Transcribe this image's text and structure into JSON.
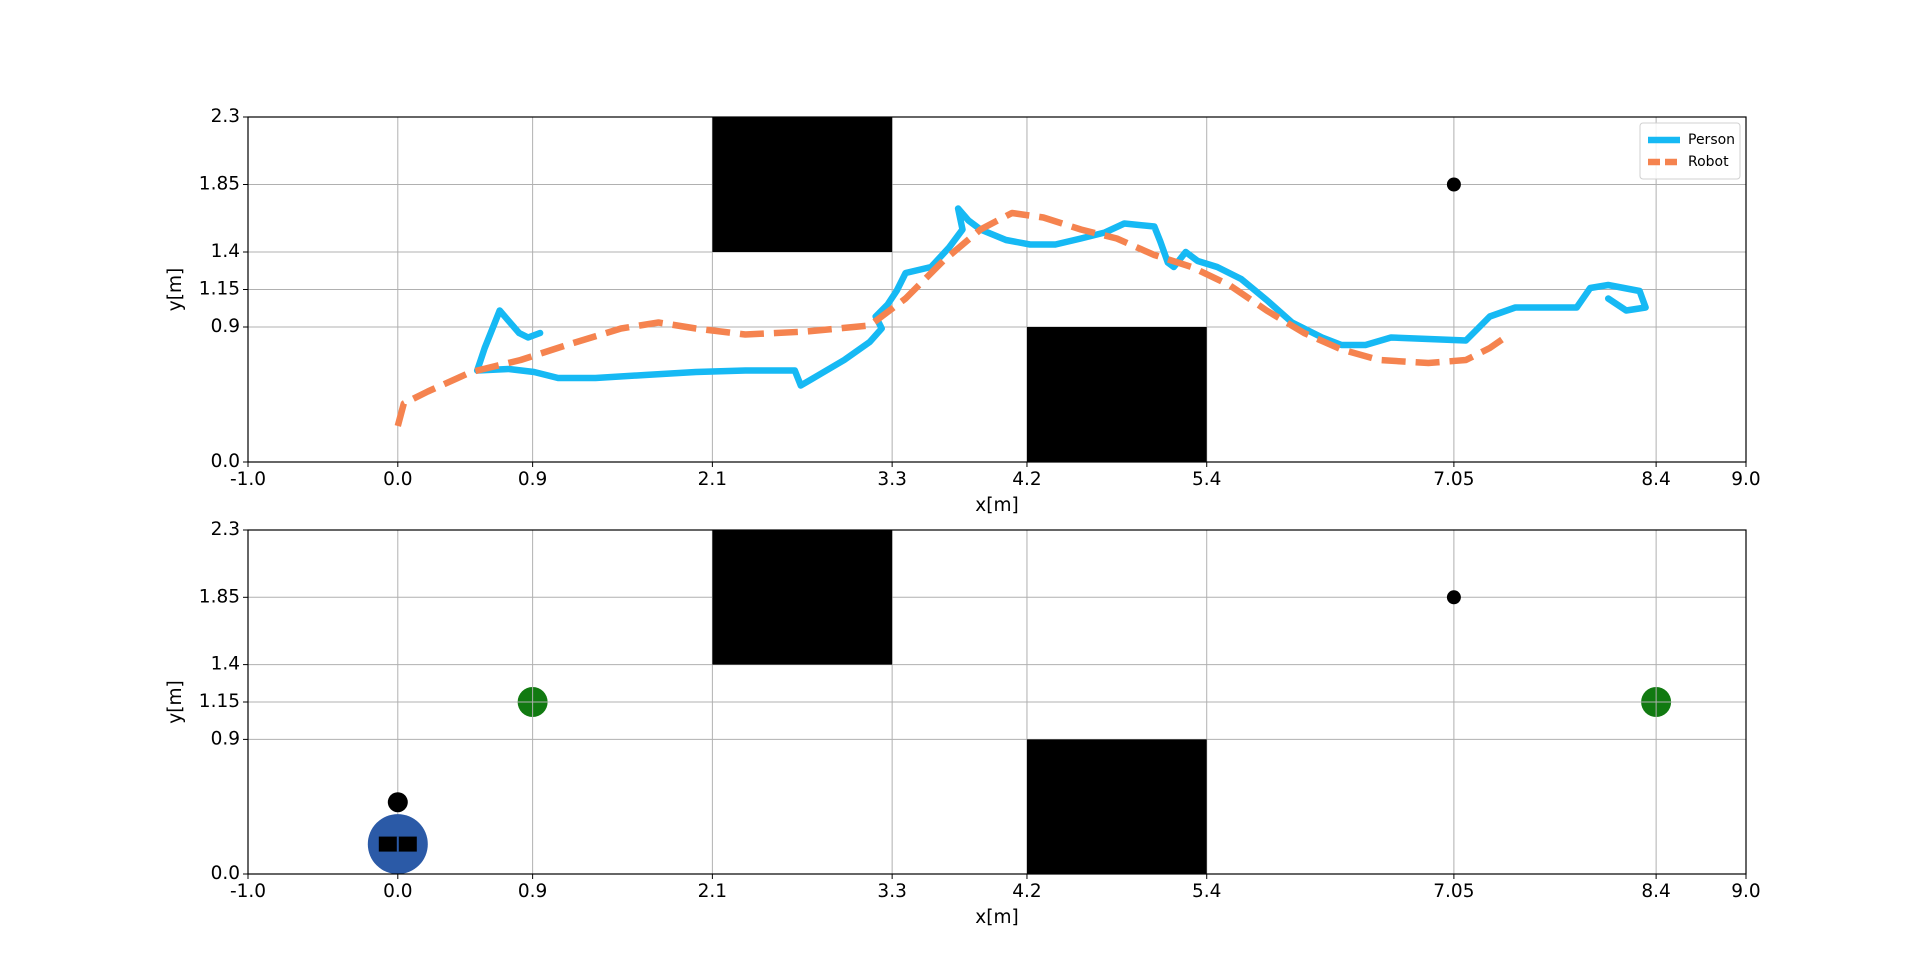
{
  "chart_data": [
    {
      "type": "line",
      "xlabel": "x[m]",
      "ylabel": "y[m]",
      "xlim": [
        -1,
        9
      ],
      "ylim": [
        0,
        2.3
      ],
      "xticks": [
        {
          "value": -1,
          "label": "-1.0"
        },
        {
          "value": 0,
          "label": "0.0"
        },
        0.9,
        2.1,
        3.3,
        4.2,
        5.4,
        7.05,
        8.4,
        {
          "value": 9,
          "label": "9.0"
        }
      ],
      "yticks": [
        {
          "value": 0,
          "label": "0.0"
        },
        0.9,
        1.15,
        1.4,
        1.85,
        2.3
      ],
      "grid": true,
      "legend": "upper right",
      "obstacles": [
        {
          "x0": 2.1,
          "x1": 3.3,
          "y0": 1.4,
          "y1": 2.3
        },
        {
          "x0": 4.2,
          "x1": 5.4,
          "y0": 0,
          "y1": 0.9
        }
      ],
      "points": [
        {
          "x": 7.05,
          "y": 1.85,
          "color": "#000000",
          "marker": "dot"
        }
      ],
      "series": [
        {
          "name": "Person",
          "color": "#16b9f4",
          "linestyle": "solid",
          "x": [
            0.95,
            0.87,
            0.81,
            0.74,
            0.68,
            0.64,
            0.58,
            0.53,
            0.74,
            0.91,
            1.07,
            1.32,
            1.65,
            1.99,
            2.32,
            2.65,
            2.69,
            2.81,
            2.98,
            3.15,
            3.23,
            3.19,
            3.27,
            3.33,
            3.39,
            3.56,
            3.68,
            3.77,
            3.74,
            3.81,
            3.89,
            4.06,
            4.22,
            4.39,
            4.56,
            4.72,
            4.85,
            5.05,
            5.09,
            5.14,
            5.18,
            5.26,
            5.34,
            5.47,
            5.63,
            5.8,
            5.97,
            6.17,
            6.3,
            6.46,
            6.63,
            6.88,
            7.13,
            7.21,
            7.29,
            7.46,
            7.71,
            7.87,
            7.96,
            8.08,
            8.29,
            8.33,
            8.2,
            8.08
          ],
          "y": [
            0.86,
            0.83,
            0.86,
            0.94,
            1.01,
            0.91,
            0.76,
            0.61,
            0.62,
            0.6,
            0.56,
            0.56,
            0.58,
            0.6,
            0.61,
            0.61,
            0.51,
            0.58,
            0.68,
            0.8,
            0.89,
            0.97,
            1.05,
            1.14,
            1.26,
            1.3,
            1.43,
            1.55,
            1.69,
            1.61,
            1.55,
            1.48,
            1.45,
            1.45,
            1.49,
            1.53,
            1.59,
            1.57,
            1.47,
            1.33,
            1.3,
            1.4,
            1.34,
            1.3,
            1.22,
            1.08,
            0.93,
            0.83,
            0.78,
            0.78,
            0.83,
            0.82,
            0.81,
            0.89,
            0.97,
            1.03,
            1.03,
            1.03,
            1.16,
            1.18,
            1.14,
            1.03,
            1.01,
            1.09
          ]
        },
        {
          "name": "Robot",
          "color": "#f5834f",
          "linestyle": "dashed",
          "x": [
            0,
            0.04,
            0.2,
            0.49,
            0.82,
            1.16,
            1.49,
            1.74,
            1.99,
            2.32,
            2.73,
            3.15,
            3.39,
            3.64,
            3.89,
            4.1,
            4.31,
            4.56,
            4.8,
            5.05,
            5.3,
            5.55,
            5.8,
            6.05,
            6.3,
            6.55,
            6.88,
            7.13,
            7.29,
            7.42
          ],
          "y": [
            0.24,
            0.39,
            0.47,
            0.6,
            0.68,
            0.79,
            0.89,
            0.93,
            0.89,
            0.85,
            0.87,
            0.91,
            1.09,
            1.34,
            1.55,
            1.66,
            1.63,
            1.55,
            1.49,
            1.38,
            1.3,
            1.18,
            1.01,
            0.86,
            0.75,
            0.68,
            0.66,
            0.68,
            0.76,
            0.85
          ]
        }
      ]
    },
    {
      "type": "scatter",
      "xlabel": "x[m]",
      "ylabel": "y[m]",
      "xlim": [
        -1,
        9
      ],
      "ylim": [
        0,
        2.3
      ],
      "xticks": [
        {
          "value": -1,
          "label": "-1.0"
        },
        {
          "value": 0,
          "label": "0.0"
        },
        0.9,
        2.1,
        3.3,
        4.2,
        5.4,
        7.05,
        8.4,
        {
          "value": 9,
          "label": "9.0"
        }
      ],
      "yticks": [
        {
          "value": 0,
          "label": "0.0"
        },
        0.9,
        1.15,
        1.4,
        1.85,
        2.3
      ],
      "grid": true,
      "obstacles": [
        {
          "x0": 2.1,
          "x1": 3.3,
          "y0": 1.4,
          "y1": 2.3
        },
        {
          "x0": 4.2,
          "x1": 5.4,
          "y0": 0,
          "y1": 0.9
        }
      ],
      "points": [
        {
          "x": 7.05,
          "y": 1.85,
          "color": "#000000",
          "marker": "dot"
        },
        {
          "x": 0.9,
          "y": 1.15,
          "color": "#117a11",
          "marker": "circle"
        },
        {
          "x": 8.4,
          "y": 1.15,
          "color": "#117a11",
          "marker": "circle"
        },
        {
          "x": 0,
          "y": 0.2,
          "color": "#2b5aa7",
          "marker": "robot"
        },
        {
          "x": 0,
          "y": 0.48,
          "color": "#000000",
          "marker": "dot"
        }
      ]
    }
  ]
}
